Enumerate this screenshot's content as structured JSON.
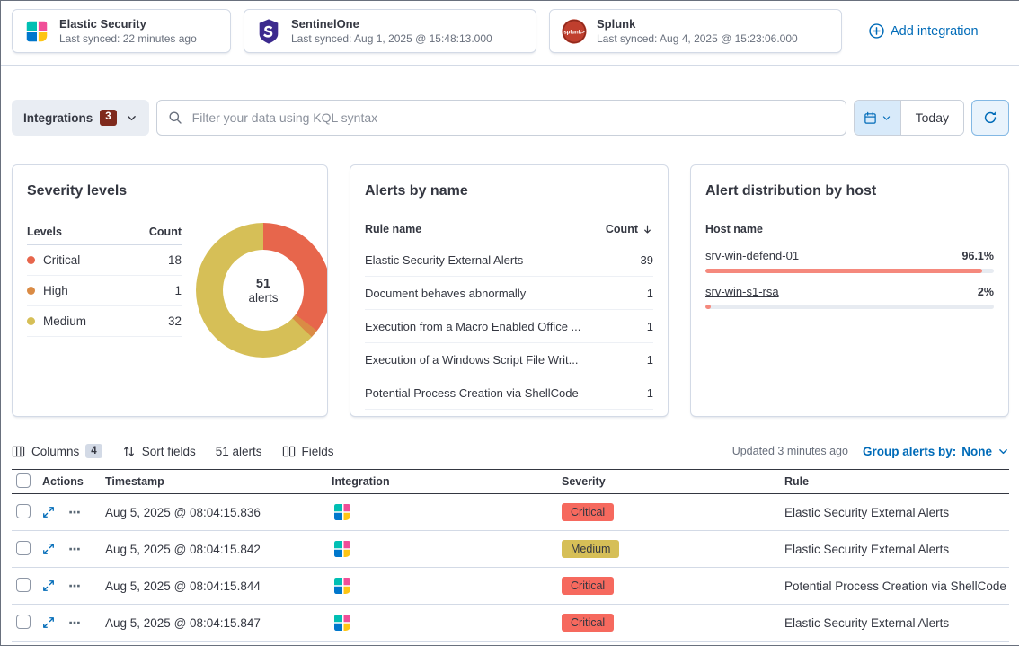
{
  "topbar": {
    "cards": [
      {
        "title": "Elastic Security",
        "synced": "Last synced: 22 minutes ago"
      },
      {
        "title": "SentinelOne",
        "synced": "Last synced: Aug 1, 2025 @ 15:48:13.000"
      },
      {
        "title": "Splunk",
        "synced": "Last synced: Aug 4, 2025 @ 15:23:06.000"
      }
    ],
    "add_integration": "Add integration"
  },
  "filterbar": {
    "integrations_label": "Integrations",
    "integrations_count": "3",
    "search_placeholder": "Filter your data using KQL syntax",
    "today_label": "Today"
  },
  "severity_panel": {
    "title": "Severity levels",
    "col_levels": "Levels",
    "col_count": "Count",
    "rows": [
      {
        "label": "Critical",
        "count": 18,
        "color": "#e7664c"
      },
      {
        "label": "High",
        "count": 1,
        "color": "#da8b45"
      },
      {
        "label": "Medium",
        "count": 32,
        "color": "#d6bf57"
      }
    ],
    "total": "51",
    "total_label": "alerts"
  },
  "alerts_by_name_panel": {
    "title": "Alerts by name",
    "col_rule": "Rule name",
    "col_count": "Count",
    "rows": [
      {
        "rule": "Elastic Security External Alerts",
        "count": 39
      },
      {
        "rule": "Document behaves abnormally",
        "count": 1
      },
      {
        "rule": "Execution from a Macro Enabled Office ...",
        "count": 1
      },
      {
        "rule": "Execution of a Windows Script File Writ...",
        "count": 1
      },
      {
        "rule": "Potential Process Creation via ShellCode",
        "count": 1
      }
    ]
  },
  "host_panel": {
    "title": "Alert distribution by host",
    "col_host": "Host name",
    "bar_color": "#f5897d",
    "rows": [
      {
        "host": "srv-win-defend-01",
        "pct_label": "96.1%",
        "pct": 96.1
      },
      {
        "host": "srv-win-s1-rsa",
        "pct_label": "2%",
        "pct": 2
      }
    ]
  },
  "table_toolbar": {
    "columns_label": "Columns",
    "columns_count": "4",
    "sort_label": "Sort fields",
    "alerts_count": "51 alerts",
    "fields_label": "Fields",
    "updated": "Updated 3 minutes ago",
    "group_by_label": "Group alerts by:",
    "group_by_value": "None"
  },
  "alerts_table": {
    "headers": {
      "actions": "Actions",
      "timestamp": "Timestamp",
      "integration": "Integration",
      "severity": "Severity",
      "rule": "Rule"
    },
    "rows": [
      {
        "timestamp": "Aug 5, 2025 @ 08:04:15.836",
        "severity": "Critical",
        "rule": "Elastic Security External Alerts"
      },
      {
        "timestamp": "Aug 5, 2025 @ 08:04:15.842",
        "severity": "Medium",
        "rule": "Elastic Security External Alerts"
      },
      {
        "timestamp": "Aug 5, 2025 @ 08:04:15.844",
        "severity": "Critical",
        "rule": "Potential Process Creation via ShellCode"
      },
      {
        "timestamp": "Aug 5, 2025 @ 08:04:15.847",
        "severity": "Critical",
        "rule": "Elastic Security External Alerts"
      }
    ]
  },
  "severity_badge_colors": {
    "Critical": "#f6695e",
    "Medium": "#d6bf57"
  },
  "colors": {
    "link_blue": "#006bb8",
    "filter_badge": "#7f2a1d",
    "host_bar": "#f5897d"
  }
}
